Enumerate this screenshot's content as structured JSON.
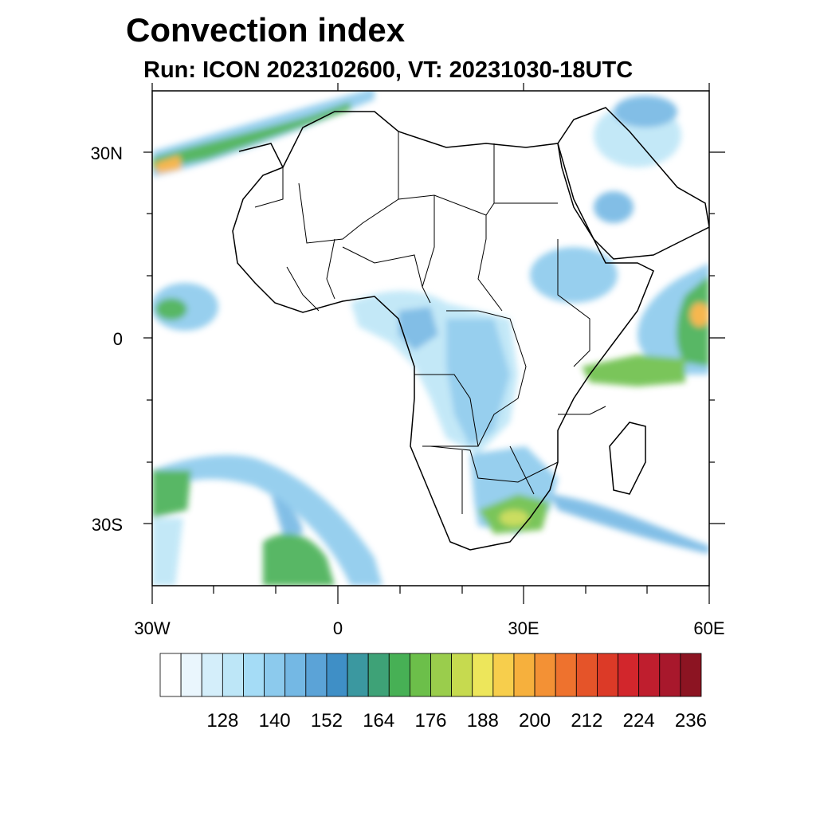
{
  "title": "Convection index",
  "subtitle": "Run: ICON 2023102600,  VT: 20231030-18UTC",
  "map": {
    "lat_labels": [
      "30N",
      "0",
      "30S"
    ],
    "lon_labels": [
      "30W",
      "0",
      "30E",
      "60E"
    ]
  },
  "colorbar": {
    "labels": [
      "128",
      "140",
      "152",
      "164",
      "176",
      "188",
      "200",
      "212",
      "224",
      "236"
    ],
    "colors": [
      "#ffffff",
      "#eaf6fd",
      "#d4eefa",
      "#bde6f7",
      "#a5dcf6",
      "#8ccaed",
      "#74b8e4",
      "#5ba3d7",
      "#3f8fc6",
      "#3b98a0",
      "#3ea277",
      "#47b055",
      "#6cbf4a",
      "#9acd4c",
      "#c6da4f",
      "#ede65b",
      "#f7ce4c",
      "#f6b03d",
      "#f39135",
      "#ee722e",
      "#e55429",
      "#dc3a27",
      "#d2262c",
      "#bf1e2e",
      "#a8182c",
      "#8c1422"
    ]
  }
}
